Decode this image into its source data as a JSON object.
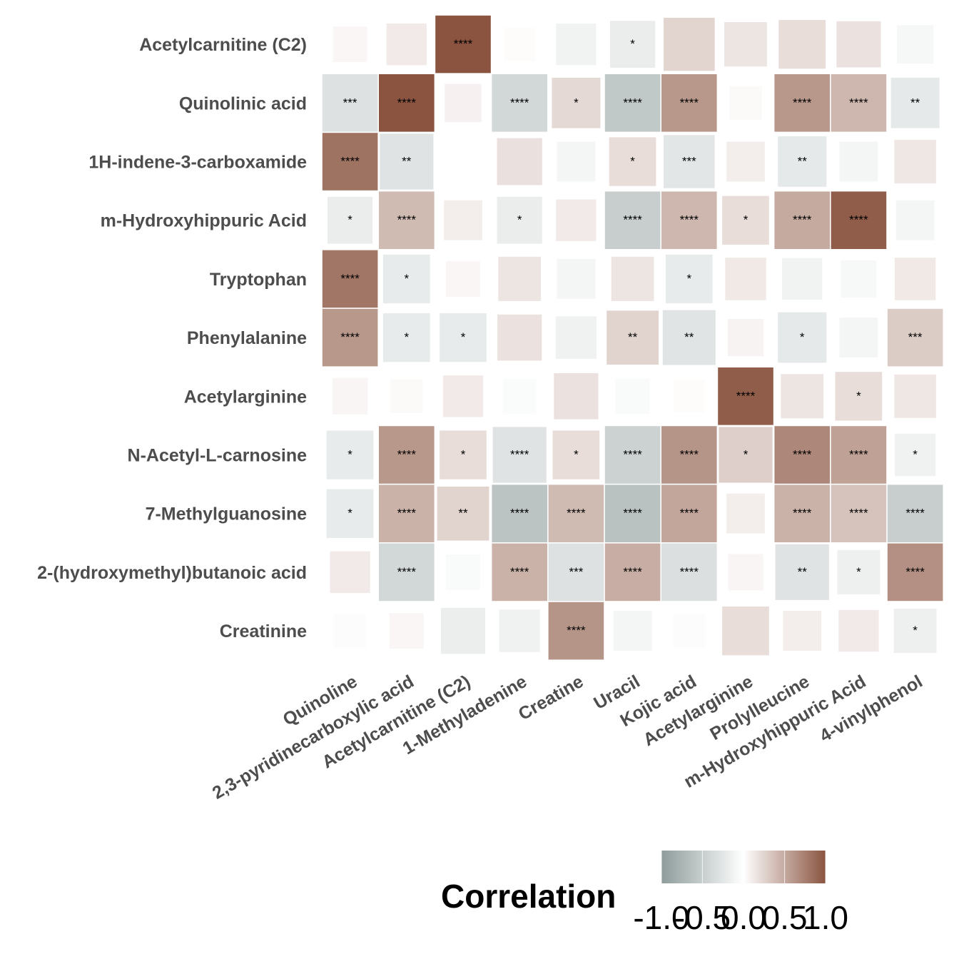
{
  "chart_data": {
    "type": "heatmap",
    "title": "",
    "xlabel": "",
    "ylabel": "",
    "x": [
      "Quinoline",
      "2,3-pyridinecarboxylic acid",
      "Acetylcarnitine (C2)",
      "1-Methyladenine",
      "Creatine",
      "Uracil",
      "Kojic acid",
      "Acetylarginine",
      "Prolylleucine",
      "m-Hydroxyhippuric Acid",
      "4-vinylphenol"
    ],
    "y": [
      "Acetylcarnitine (C2)",
      "Quinolinic acid",
      "1H-indene-3-carboxamide",
      "m-Hydroxyhippuric Acid",
      "Tryptophan",
      "Phenylalanine",
      "Acetylarginine",
      "N-Acetyl-L-carnosine",
      "7-Methylguanosine",
      "2-(hydroxymethyl)butanoic acid",
      "Creatinine"
    ],
    "values": [
      [
        0.05,
        0.12,
        1.0,
        0.02,
        -0.12,
        -0.18,
        0.25,
        0.15,
        0.2,
        0.17,
        -0.08
      ],
      [
        -0.3,
        1.0,
        0.08,
        -0.4,
        0.22,
        -0.55,
        0.6,
        0.03,
        0.6,
        0.42,
        -0.22
      ],
      [
        0.82,
        -0.28,
        0.0,
        0.18,
        -0.1,
        0.2,
        -0.25,
        0.1,
        -0.22,
        -0.1,
        0.14
      ],
      [
        -0.18,
        0.4,
        0.1,
        -0.18,
        0.12,
        -0.5,
        0.42,
        0.2,
        0.5,
        0.95,
        -0.1
      ],
      [
        0.8,
        -0.2,
        0.05,
        0.15,
        -0.1,
        0.15,
        -0.2,
        0.13,
        -0.12,
        -0.07,
        0.13
      ],
      [
        0.6,
        -0.2,
        -0.2,
        0.17,
        -0.13,
        0.26,
        -0.27,
        0.07,
        -0.22,
        -0.1,
        0.3
      ],
      [
        0.06,
        0.03,
        0.12,
        -0.04,
        0.17,
        -0.05,
        0.02,
        0.95,
        0.15,
        0.2,
        0.14
      ],
      [
        -0.2,
        0.6,
        0.2,
        -0.28,
        0.2,
        -0.45,
        0.62,
        0.28,
        0.7,
        0.55,
        -0.13
      ],
      [
        -0.2,
        0.45,
        0.26,
        -0.6,
        0.4,
        -0.62,
        0.52,
        0.1,
        0.45,
        0.35,
        -0.5
      ],
      [
        0.12,
        -0.4,
        -0.05,
        0.45,
        -0.3,
        0.48,
        -0.32,
        0.06,
        -0.28,
        -0.15,
        0.65
      ],
      [
        -0.03,
        0.05,
        -0.17,
        -0.13,
        0.62,
        -0.1,
        -0.03,
        0.2,
        0.1,
        0.12,
        -0.15
      ]
    ],
    "significance": [
      [
        "",
        "",
        "****",
        "",
        "",
        "*",
        "",
        "",
        "",
        "",
        ""
      ],
      [
        "***",
        "****",
        "",
        "****",
        "*",
        "****",
        "****",
        "",
        "****",
        "****",
        "**"
      ],
      [
        "****",
        "**",
        "",
        "",
        "",
        "*",
        "***",
        "",
        "**",
        "",
        ""
      ],
      [
        "*",
        "****",
        "",
        "*",
        "",
        "****",
        "****",
        "*",
        "****",
        "****",
        ""
      ],
      [
        "****",
        "*",
        "",
        "",
        "",
        "",
        "*",
        "",
        "",
        "",
        ""
      ],
      [
        "****",
        "*",
        "*",
        "",
        "",
        "**",
        "**",
        "",
        "*",
        "",
        "***"
      ],
      [
        "",
        "",
        "",
        "",
        "",
        "",
        "",
        "****",
        "",
        "*",
        ""
      ],
      [
        "*",
        "****",
        "*",
        "****",
        "*",
        "****",
        "****",
        "*",
        "****",
        "****",
        "*"
      ],
      [
        "*",
        "****",
        "**",
        "****",
        "****",
        "****",
        "****",
        "",
        "****",
        "****",
        "****"
      ],
      [
        "",
        "****",
        "",
        "****",
        "***",
        "****",
        "****",
        "",
        "**",
        "*",
        "****"
      ],
      [
        "",
        "",
        "",
        "",
        "****",
        "",
        "",
        "",
        "",
        "",
        "*"
      ]
    ],
    "legend": {
      "title": "Correlation",
      "ticks": [
        "-1.0",
        "-0.5",
        "0.0",
        "0.5",
        "1.0"
      ],
      "range": [
        -1,
        1
      ],
      "placement": "bottom"
    },
    "colors": {
      "negative": "#8e9c9b",
      "neutral": "#ffffff",
      "positive": "#8a5440"
    },
    "grid": false
  }
}
